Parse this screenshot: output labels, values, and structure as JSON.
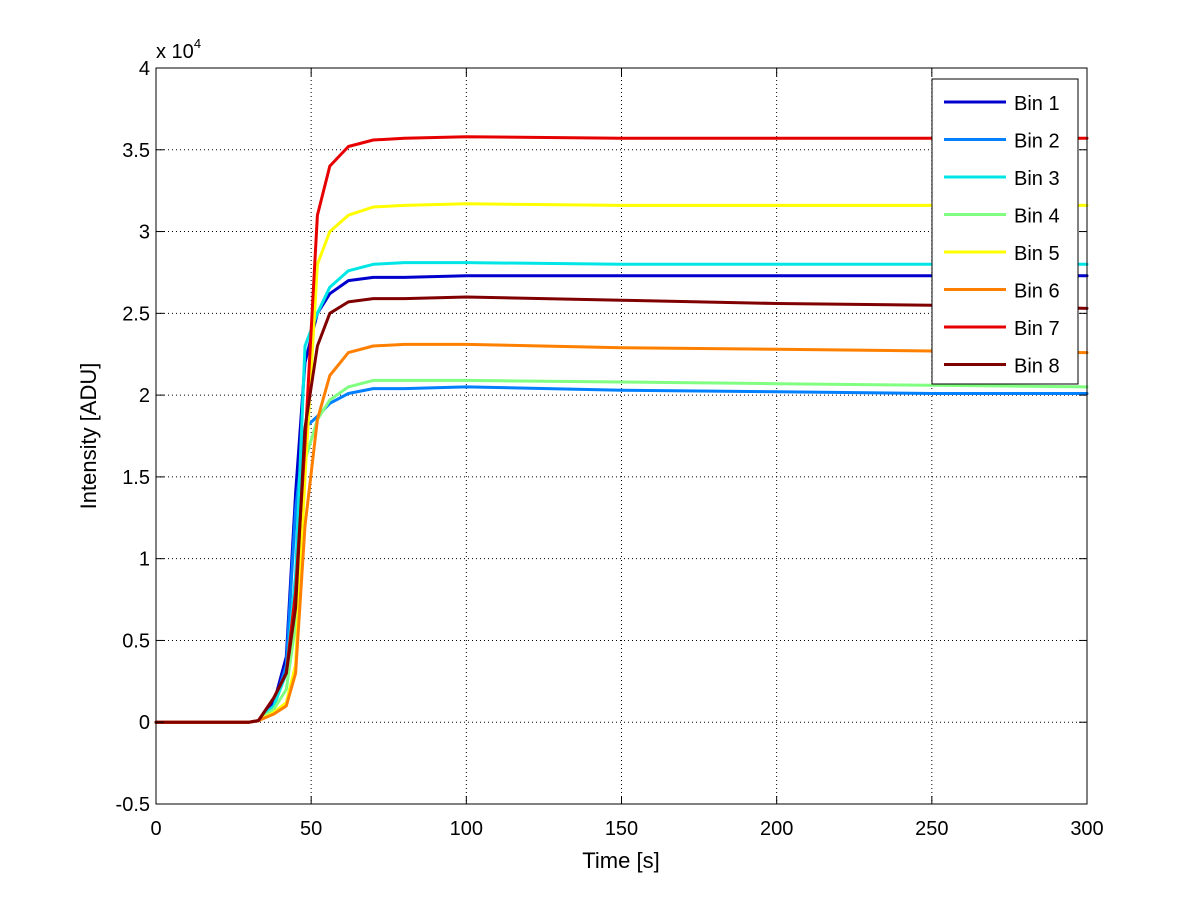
{
  "chart_data": {
    "type": "line",
    "title": "",
    "xlabel": "Time [s]",
    "ylabel": "Intensity [ADU]",
    "y_exponent_label": "x 10",
    "y_exponent": "4",
    "xlim": [
      0,
      300
    ],
    "ylim": [
      -0.5,
      4
    ],
    "xticks": [
      0,
      50,
      100,
      150,
      200,
      250,
      300
    ],
    "xtick_labels": [
      "0",
      "50",
      "100",
      "150",
      "200",
      "250",
      "300"
    ],
    "yticks": [
      -0.5,
      0,
      0.5,
      1,
      1.5,
      2,
      2.5,
      3,
      3.5,
      4
    ],
    "ytick_labels": [
      "-0.5",
      "0",
      "0.5",
      "1",
      "1.5",
      "2",
      "2.5",
      "3",
      "3.5",
      "4"
    ],
    "grid": true,
    "legend_position": "top-right",
    "series": [
      {
        "name": "Bin 1",
        "color": "#0000cc",
        "x": [
          0,
          30,
          33,
          38,
          42,
          45,
          48,
          52,
          56,
          62,
          70,
          80,
          100,
          150,
          200,
          250,
          300
        ],
        "values": [
          0,
          0,
          0.01,
          0.12,
          0.4,
          1.4,
          2.2,
          2.5,
          2.62,
          2.7,
          2.72,
          2.72,
          2.73,
          2.73,
          2.73,
          2.73,
          2.73
        ]
      },
      {
        "name": "Bin 2",
        "color": "#0080ff",
        "x": [
          0,
          30,
          33,
          38,
          42,
          45,
          48,
          52,
          56,
          62,
          70,
          80,
          100,
          150,
          200,
          250,
          300
        ],
        "values": [
          0,
          0,
          0.01,
          0.1,
          0.35,
          1.3,
          1.8,
          1.87,
          1.95,
          2.01,
          2.04,
          2.04,
          2.05,
          2.03,
          2.02,
          2.01,
          2.01
        ]
      },
      {
        "name": "Bin 3",
        "color": "#00e6e6",
        "x": [
          0,
          30,
          33,
          38,
          42,
          45,
          48,
          52,
          56,
          62,
          70,
          80,
          100,
          150,
          200,
          250,
          300
        ],
        "values": [
          0,
          0,
          0.01,
          0.1,
          0.3,
          0.9,
          2.3,
          2.5,
          2.66,
          2.76,
          2.8,
          2.81,
          2.81,
          2.8,
          2.8,
          2.8,
          2.8
        ]
      },
      {
        "name": "Bin 4",
        "color": "#80ff80",
        "x": [
          0,
          30,
          33,
          38,
          42,
          45,
          48,
          52,
          56,
          62,
          70,
          80,
          100,
          150,
          200,
          250,
          300
        ],
        "values": [
          0,
          0,
          0.01,
          0.08,
          0.2,
          0.6,
          1.6,
          1.85,
          1.97,
          2.05,
          2.09,
          2.09,
          2.09,
          2.08,
          2.07,
          2.06,
          2.05
        ]
      },
      {
        "name": "Bin 5",
        "color": "#ffff00",
        "x": [
          0,
          30,
          33,
          38,
          42,
          45,
          48,
          52,
          56,
          62,
          70,
          80,
          100,
          150,
          200,
          250,
          300
        ],
        "values": [
          0,
          0,
          0.01,
          0.06,
          0.12,
          0.35,
          1.5,
          2.8,
          3.0,
          3.1,
          3.15,
          3.16,
          3.17,
          3.16,
          3.16,
          3.16,
          3.16
        ]
      },
      {
        "name": "Bin 6",
        "color": "#ff8000",
        "x": [
          0,
          30,
          33,
          38,
          42,
          45,
          48,
          52,
          56,
          62,
          70,
          80,
          100,
          150,
          200,
          250,
          300
        ],
        "values": [
          0,
          0,
          0.01,
          0.05,
          0.1,
          0.3,
          1.2,
          1.85,
          2.12,
          2.26,
          2.3,
          2.31,
          2.31,
          2.29,
          2.28,
          2.27,
          2.26
        ]
      },
      {
        "name": "Bin 7",
        "color": "#e60000",
        "x": [
          0,
          30,
          33,
          38,
          42,
          45,
          48,
          52,
          56,
          62,
          70,
          80,
          100,
          150,
          200,
          250,
          300
        ],
        "values": [
          0,
          0,
          0.01,
          0.15,
          0.3,
          0.8,
          1.7,
          3.1,
          3.4,
          3.52,
          3.56,
          3.57,
          3.58,
          3.57,
          3.57,
          3.57,
          3.57
        ]
      },
      {
        "name": "Bin 8",
        "color": "#800000",
        "x": [
          0,
          30,
          33,
          38,
          42,
          45,
          48,
          52,
          56,
          62,
          70,
          80,
          100,
          150,
          200,
          250,
          300
        ],
        "values": [
          0,
          0,
          0.01,
          0.15,
          0.3,
          0.7,
          1.8,
          2.3,
          2.5,
          2.57,
          2.59,
          2.59,
          2.6,
          2.58,
          2.56,
          2.55,
          2.53
        ]
      }
    ]
  }
}
